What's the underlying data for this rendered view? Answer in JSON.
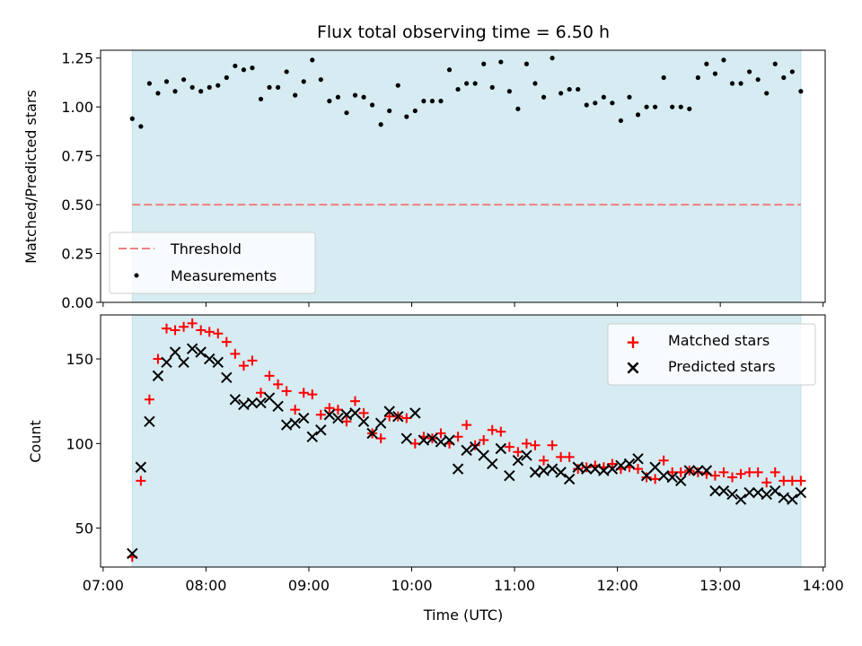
{
  "chart_data": [
    {
      "type": "scatter",
      "title": "Flux total observing time = 6.50 h",
      "xlabel": "",
      "ylabel": "Matched/Predicted stars",
      "ylim": [
        0,
        1.29
      ],
      "yticks": [
        "0.00",
        "0.25",
        "0.50",
        "0.75",
        "1.00",
        "1.25"
      ],
      "yticks_values": [
        0,
        0.25,
        0.5,
        0.75,
        1.0,
        1.25
      ],
      "xlim": [
        "07:00",
        "14:00"
      ],
      "observing_window": [
        "07:17",
        "13:47"
      ],
      "threshold": 0.5,
      "legend_position": "lower-left",
      "series": [
        {
          "name": "Threshold",
          "kind": "dashed-line",
          "color": "#f08080"
        },
        {
          "name": "Measurements",
          "kind": "points",
          "color": "#000000",
          "x": [
            "07:17",
            "07:22",
            "07:27",
            "07:32",
            "07:37",
            "07:42",
            "07:47",
            "07:52",
            "07:57",
            "08:02",
            "08:07",
            "08:12",
            "08:17",
            "08:22",
            "08:27",
            "08:32",
            "08:37",
            "08:42",
            "08:47",
            "08:52",
            "08:57",
            "09:02",
            "09:07",
            "09:12",
            "09:17",
            "09:22",
            "09:27",
            "09:32",
            "09:37",
            "09:42",
            "09:47",
            "09:52",
            "09:57",
            "10:02",
            "10:07",
            "10:12",
            "10:17",
            "10:22",
            "10:27",
            "10:32",
            "10:37",
            "10:42",
            "10:47",
            "10:52",
            "10:57",
            "11:02",
            "11:07",
            "11:12",
            "11:17",
            "11:22",
            "11:27",
            "11:32",
            "11:37",
            "11:42",
            "11:47",
            "11:52",
            "11:57",
            "12:02",
            "12:07",
            "12:12",
            "12:17",
            "12:22",
            "12:27",
            "12:32",
            "12:37",
            "12:42",
            "12:47",
            "12:52",
            "12:57",
            "13:02",
            "13:07",
            "13:12",
            "13:17",
            "13:22",
            "13:27",
            "13:32",
            "13:37",
            "13:42",
            "13:47"
          ],
          "y": [
            0.94,
            0.9,
            1.12,
            1.07,
            1.13,
            1.08,
            1.14,
            1.1,
            1.08,
            1.1,
            1.11,
            1.15,
            1.21,
            1.19,
            1.2,
            1.04,
            1.1,
            1.1,
            1.18,
            1.06,
            1.13,
            1.24,
            1.14,
            1.03,
            1.05,
            0.97,
            1.06,
            1.05,
            1.01,
            0.91,
            0.98,
            1.11,
            0.95,
            0.98,
            1.03,
            1.03,
            1.03,
            1.19,
            1.09,
            1.12,
            1.12,
            1.22,
            1.1,
            1.23,
            1.08,
            0.99,
            1.22,
            1.12,
            1.05,
            1.25,
            1.07,
            1.09,
            1.09,
            1.01,
            1.02,
            1.05,
            1.02,
            0.93,
            1.05,
            0.96,
            1.0,
            1.0,
            1.15,
            1.0,
            1.0,
            0.99,
            1.15,
            1.22,
            1.17,
            1.24,
            1.12,
            1.12,
            1.18,
            1.14,
            1.07,
            1.22,
            1.15,
            1.18,
            1.08
          ]
        }
      ]
    },
    {
      "type": "scatter",
      "title": "",
      "xlabel": "Time (UTC)",
      "ylabel": "Count",
      "ylim": [
        27,
        176
      ],
      "yticks": [
        "50",
        "100",
        "150"
      ],
      "yticks_values": [
        50,
        100,
        150
      ],
      "xlim": [
        "07:00",
        "14:00"
      ],
      "xticks": [
        "07:00",
        "08:00",
        "09:00",
        "10:00",
        "11:00",
        "12:00",
        "13:00",
        "14:00"
      ],
      "observing_window": [
        "07:17",
        "13:47"
      ],
      "legend_position": "upper-right",
      "x": [
        "07:17",
        "07:22",
        "07:27",
        "07:32",
        "07:37",
        "07:42",
        "07:47",
        "07:52",
        "07:57",
        "08:02",
        "08:07",
        "08:12",
        "08:17",
        "08:22",
        "08:27",
        "08:32",
        "08:37",
        "08:42",
        "08:47",
        "08:52",
        "08:57",
        "09:02",
        "09:07",
        "09:12",
        "09:17",
        "09:22",
        "09:27",
        "09:32",
        "09:37",
        "09:42",
        "09:47",
        "09:52",
        "09:57",
        "10:02",
        "10:07",
        "10:12",
        "10:17",
        "10:22",
        "10:27",
        "10:32",
        "10:37",
        "10:42",
        "10:47",
        "10:52",
        "10:57",
        "11:02",
        "11:07",
        "11:12",
        "11:17",
        "11:22",
        "11:27",
        "11:32",
        "11:37",
        "11:42",
        "11:47",
        "11:52",
        "11:57",
        "12:02",
        "12:07",
        "12:12",
        "12:17",
        "12:22",
        "12:27",
        "12:32",
        "12:37",
        "12:42",
        "12:47",
        "12:52",
        "12:57",
        "13:02",
        "13:07",
        "13:12",
        "13:17",
        "13:22",
        "13:27",
        "13:32",
        "13:37",
        "13:42",
        "13:47"
      ],
      "series": [
        {
          "name": "Matched stars",
          "marker": "plus",
          "color": "#ff0000",
          "values": [
            33,
            78,
            126,
            150,
            168,
            167,
            169,
            171,
            167,
            166,
            165,
            160,
            153,
            146,
            149,
            130,
            140,
            135,
            131,
            120,
            130,
            129,
            117,
            121,
            120,
            113,
            125,
            118,
            106,
            103,
            116,
            116,
            115,
            100,
            104,
            103,
            106,
            100,
            104,
            111,
            99,
            102,
            108,
            107,
            98,
            95,
            100,
            99,
            90,
            99,
            92,
            92,
            85,
            86,
            87,
            86,
            88,
            85,
            86,
            85,
            80,
            79,
            90,
            83,
            83,
            84,
            83,
            82,
            81,
            83,
            80,
            82,
            83,
            83,
            77,
            83,
            78,
            78,
            78
          ],
          "legend_marker": "+"
        },
        {
          "name": "Predicted stars",
          "marker": "x",
          "color": "#000000",
          "values": [
            35,
            86,
            113,
            140,
            148,
            154,
            148,
            156,
            154,
            150,
            148,
            139,
            126,
            123,
            124,
            124,
            127,
            122,
            111,
            112,
            115,
            104,
            108,
            117,
            115,
            117,
            118,
            113,
            106,
            112,
            119,
            116,
            103,
            118,
            102,
            103,
            101,
            102,
            85,
            96,
            98,
            93,
            88,
            97,
            81,
            90,
            93,
            83,
            84,
            85,
            83,
            79,
            86,
            85,
            85,
            84,
            85,
            87,
            88,
            91,
            81,
            86,
            81,
            80,
            78,
            84,
            84,
            84,
            72,
            72,
            70,
            67,
            71,
            71,
            70,
            72,
            68,
            67,
            71
          ],
          "legend_marker": "×"
        }
      ]
    }
  ]
}
